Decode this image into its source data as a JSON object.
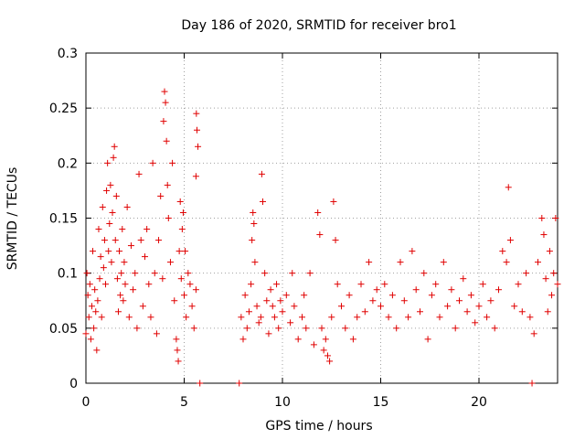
{
  "chart_data": {
    "type": "scatter",
    "title": "Day 186 of 2020, SRMTID for receiver bro1",
    "xlabel": "GPS time / hours",
    "ylabel": "SRMTID / TECUs",
    "xlim": [
      0,
      24
    ],
    "ylim": [
      0,
      0.3
    ],
    "xticks": [
      0,
      5,
      10,
      15,
      20
    ],
    "xtick_labels": [
      "0",
      "5",
      "10",
      "15",
      "20"
    ],
    "yticks": [
      0,
      0.05,
      0.1,
      0.15,
      0.2,
      0.25,
      0.3
    ],
    "ytick_labels": [
      "0",
      "0.05",
      "0.1",
      "0.15",
      "0.2",
      "0.25",
      "0.3"
    ],
    "grid": true,
    "marker": "+",
    "series_color": "#e00000",
    "series": [
      {
        "name": "SRMTID",
        "points": [
          [
            0.0,
            0.045
          ],
          [
            0.05,
            0.1
          ],
          [
            0.1,
            0.08
          ],
          [
            0.15,
            0.06
          ],
          [
            0.2,
            0.09
          ],
          [
            0.25,
            0.04
          ],
          [
            0.3,
            0.07
          ],
          [
            0.35,
            0.12
          ],
          [
            0.4,
            0.05
          ],
          [
            0.45,
            0.085
          ],
          [
            0.5,
            0.065
          ],
          [
            0.55,
            0.03
          ],
          [
            0.6,
            0.075
          ],
          [
            0.65,
            0.14
          ],
          [
            0.7,
            0.095
          ],
          [
            0.75,
            0.115
          ],
          [
            0.8,
            0.06
          ],
          [
            0.85,
            0.16
          ],
          [
            0.9,
            0.105
          ],
          [
            0.95,
            0.13
          ],
          [
            1.0,
            0.09
          ],
          [
            1.05,
            0.175
          ],
          [
            1.1,
            0.2
          ],
          [
            1.15,
            0.12
          ],
          [
            1.2,
            0.145
          ],
          [
            1.25,
            0.18
          ],
          [
            1.3,
            0.11
          ],
          [
            1.35,
            0.155
          ],
          [
            1.4,
            0.205
          ],
          [
            1.45,
            0.215
          ],
          [
            1.5,
            0.13
          ],
          [
            1.55,
            0.17
          ],
          [
            1.6,
            0.095
          ],
          [
            1.65,
            0.065
          ],
          [
            1.7,
            0.12
          ],
          [
            1.75,
            0.08
          ],
          [
            1.8,
            0.1
          ],
          [
            1.85,
            0.14
          ],
          [
            1.9,
            0.075
          ],
          [
            1.95,
            0.11
          ],
          [
            2.0,
            0.09
          ],
          [
            2.1,
            0.16
          ],
          [
            2.2,
            0.06
          ],
          [
            2.3,
            0.125
          ],
          [
            2.4,
            0.085
          ],
          [
            2.5,
            0.1
          ],
          [
            2.6,
            0.05
          ],
          [
            2.7,
            0.19
          ],
          [
            2.8,
            0.13
          ],
          [
            2.9,
            0.07
          ],
          [
            3.0,
            0.115
          ],
          [
            3.1,
            0.14
          ],
          [
            3.2,
            0.09
          ],
          [
            3.3,
            0.06
          ],
          [
            3.4,
            0.2
          ],
          [
            3.5,
            0.1
          ],
          [
            3.6,
            0.045
          ],
          [
            3.7,
            0.13
          ],
          [
            3.8,
            0.17
          ],
          [
            3.9,
            0.095
          ],
          [
            3.95,
            0.238
          ],
          [
            4.0,
            0.265
          ],
          [
            4.05,
            0.255
          ],
          [
            4.1,
            0.22
          ],
          [
            4.15,
            0.18
          ],
          [
            4.2,
            0.15
          ],
          [
            4.3,
            0.11
          ],
          [
            4.4,
            0.2
          ],
          [
            4.5,
            0.075
          ],
          [
            4.6,
            0.04
          ],
          [
            4.65,
            0.03
          ],
          [
            4.7,
            0.02
          ],
          [
            4.75,
            0.12
          ],
          [
            4.8,
            0.165
          ],
          [
            4.85,
            0.095
          ],
          [
            4.9,
            0.14
          ],
          [
            4.95,
            0.155
          ],
          [
            5.0,
            0.08
          ],
          [
            5.05,
            0.12
          ],
          [
            5.1,
            0.06
          ],
          [
            5.2,
            0.1
          ],
          [
            5.3,
            0.09
          ],
          [
            5.4,
            0.07
          ],
          [
            5.5,
            0.05
          ],
          [
            5.6,
            0.085
          ],
          [
            5.6,
            0.188
          ],
          [
            5.62,
            0.245
          ],
          [
            5.65,
            0.23
          ],
          [
            5.7,
            0.215
          ],
          [
            5.8,
            0.0
          ],
          [
            7.8,
            0.0
          ],
          [
            7.9,
            0.06
          ],
          [
            8.0,
            0.04
          ],
          [
            8.1,
            0.08
          ],
          [
            8.2,
            0.05
          ],
          [
            8.3,
            0.065
          ],
          [
            8.4,
            0.09
          ],
          [
            8.45,
            0.13
          ],
          [
            8.5,
            0.155
          ],
          [
            8.55,
            0.145
          ],
          [
            8.6,
            0.11
          ],
          [
            8.7,
            0.07
          ],
          [
            8.8,
            0.055
          ],
          [
            8.9,
            0.06
          ],
          [
            8.95,
            0.19
          ],
          [
            9.0,
            0.165
          ],
          [
            9.1,
            0.1
          ],
          [
            9.2,
            0.075
          ],
          [
            9.3,
            0.045
          ],
          [
            9.4,
            0.085
          ],
          [
            9.5,
            0.07
          ],
          [
            9.6,
            0.06
          ],
          [
            9.7,
            0.09
          ],
          [
            9.8,
            0.05
          ],
          [
            9.9,
            0.075
          ],
          [
            10.0,
            0.065
          ],
          [
            10.2,
            0.08
          ],
          [
            10.4,
            0.055
          ],
          [
            10.5,
            0.1
          ],
          [
            10.6,
            0.07
          ],
          [
            10.8,
            0.04
          ],
          [
            11.0,
            0.06
          ],
          [
            11.1,
            0.08
          ],
          [
            11.2,
            0.05
          ],
          [
            11.4,
            0.1
          ],
          [
            11.6,
            0.035
          ],
          [
            11.8,
            0.155
          ],
          [
            11.9,
            0.135
          ],
          [
            12.0,
            0.05
          ],
          [
            12.1,
            0.03
          ],
          [
            12.2,
            0.04
          ],
          [
            12.3,
            0.025
          ],
          [
            12.4,
            0.02
          ],
          [
            12.5,
            0.06
          ],
          [
            12.6,
            0.165
          ],
          [
            12.7,
            0.13
          ],
          [
            12.8,
            0.09
          ],
          [
            13.0,
            0.07
          ],
          [
            13.2,
            0.05
          ],
          [
            13.4,
            0.08
          ],
          [
            13.6,
            0.04
          ],
          [
            13.8,
            0.06
          ],
          [
            14.0,
            0.09
          ],
          [
            14.2,
            0.065
          ],
          [
            14.4,
            0.11
          ],
          [
            14.6,
            0.075
          ],
          [
            14.8,
            0.085
          ],
          [
            15.0,
            0.07
          ],
          [
            15.2,
            0.09
          ],
          [
            15.4,
            0.06
          ],
          [
            15.6,
            0.08
          ],
          [
            15.8,
            0.05
          ],
          [
            16.0,
            0.11
          ],
          [
            16.2,
            0.075
          ],
          [
            16.4,
            0.06
          ],
          [
            16.6,
            0.12
          ],
          [
            16.8,
            0.085
          ],
          [
            17.0,
            0.065
          ],
          [
            17.2,
            0.1
          ],
          [
            17.4,
            0.04
          ],
          [
            17.6,
            0.08
          ],
          [
            17.8,
            0.09
          ],
          [
            18.0,
            0.06
          ],
          [
            18.2,
            0.11
          ],
          [
            18.4,
            0.07
          ],
          [
            18.6,
            0.085
          ],
          [
            18.8,
            0.05
          ],
          [
            19.0,
            0.075
          ],
          [
            19.2,
            0.095
          ],
          [
            19.4,
            0.065
          ],
          [
            19.6,
            0.08
          ],
          [
            19.8,
            0.055
          ],
          [
            20.0,
            0.07
          ],
          [
            20.2,
            0.09
          ],
          [
            20.4,
            0.06
          ],
          [
            20.6,
            0.075
          ],
          [
            20.8,
            0.05
          ],
          [
            21.0,
            0.085
          ],
          [
            21.2,
            0.12
          ],
          [
            21.4,
            0.11
          ],
          [
            21.5,
            0.178
          ],
          [
            21.6,
            0.13
          ],
          [
            21.8,
            0.07
          ],
          [
            22.0,
            0.09
          ],
          [
            22.2,
            0.065
          ],
          [
            22.4,
            0.1
          ],
          [
            22.6,
            0.06
          ],
          [
            22.7,
            0.0
          ],
          [
            22.8,
            0.045
          ],
          [
            23.0,
            0.11
          ],
          [
            23.2,
            0.15
          ],
          [
            23.3,
            0.135
          ],
          [
            23.4,
            0.095
          ],
          [
            23.5,
            0.065
          ],
          [
            23.6,
            0.12
          ],
          [
            23.7,
            0.08
          ],
          [
            23.8,
            0.1
          ],
          [
            23.9,
            0.15
          ],
          [
            24.0,
            0.09
          ]
        ]
      }
    ]
  }
}
